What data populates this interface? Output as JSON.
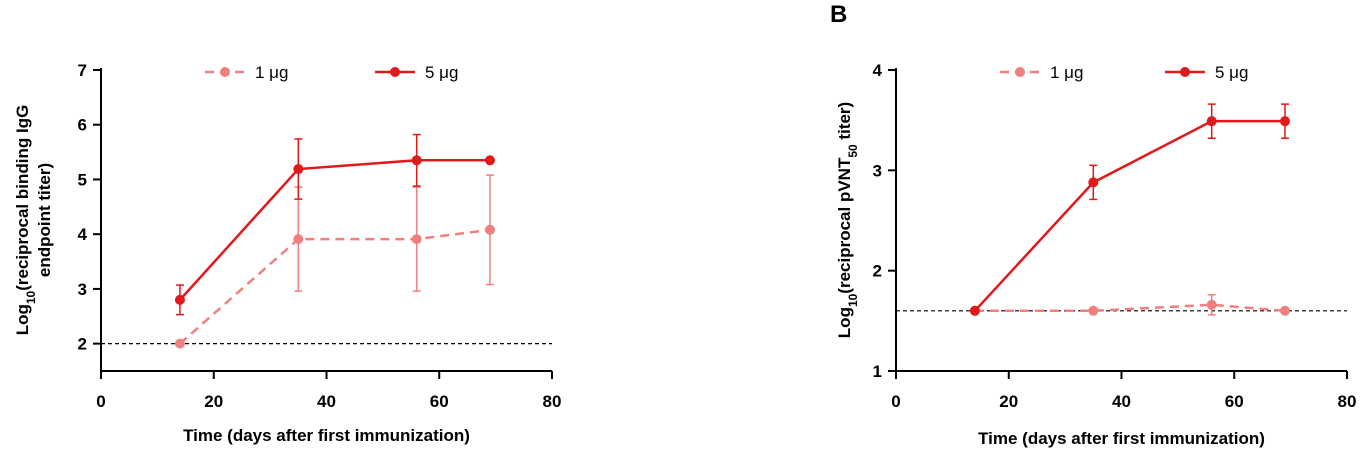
{
  "colors": {
    "dose_1ug": "#f08080",
    "dose_5ug": "#e0191b",
    "threshold": "#000000"
  },
  "chart_data": [
    {
      "type": "line",
      "panel": "",
      "title": "",
      "xlabel": "Time (days after first immunization)",
      "ylabel_line1": "Log",
      "ylabel_sub": "10",
      "ylabel_line1_rest": "(reciprocal binding IgG",
      "ylabel_line2": "endpoint titer)",
      "xlim": [
        0,
        80
      ],
      "ylim": [
        1.5,
        7
      ],
      "xticks": [
        0,
        20,
        40,
        60,
        80
      ],
      "yticks": [
        2,
        3,
        4,
        5,
        6,
        7
      ],
      "xtick_labels": [
        "0",
        "20",
        "40",
        "60",
        "80"
      ],
      "ytick_labels": [
        "2",
        "3",
        "4",
        "5",
        "6",
        "7"
      ],
      "threshold": 2,
      "legend_position": "top",
      "series": [
        {
          "name": "1 μg",
          "style": "dashed",
          "x": [
            14,
            35,
            56,
            69
          ],
          "y": [
            2.0,
            3.91,
            3.91,
            4.08
          ],
          "err_low": [
            0,
            0.95,
            0.95,
            1.0
          ],
          "err_high": [
            0,
            0.95,
            0.95,
            1.0
          ]
        },
        {
          "name": "5 μg",
          "style": "solid",
          "x": [
            14,
            35,
            56,
            69
          ],
          "y": [
            2.8,
            5.19,
            5.35,
            5.35
          ],
          "err_low": [
            0.27,
            0.55,
            0.47,
            0
          ],
          "err_high": [
            0.27,
            0.55,
            0.47,
            0
          ]
        }
      ]
    },
    {
      "type": "line",
      "panel": "B",
      "title": "",
      "xlabel": "Time (days after first immunization)",
      "ylabel_line1": "Log",
      "ylabel_sub": "10",
      "ylabel_line1_rest": "(reciprocal pVNT",
      "ylabel_sub2": "50",
      "ylabel_line1_end": " titer)",
      "xlim": [
        0,
        80
      ],
      "ylim": [
        1,
        4
      ],
      "xticks": [
        0,
        20,
        40,
        60,
        80
      ],
      "yticks": [
        1,
        2,
        3,
        4
      ],
      "xtick_labels": [
        "0",
        "20",
        "40",
        "60",
        "80"
      ],
      "ytick_labels": [
        "1",
        "2",
        "3",
        "4"
      ],
      "threshold": 1.6,
      "legend_position": "top",
      "series": [
        {
          "name": "1 μg",
          "style": "dashed",
          "x": [
            14,
            35,
            56,
            69
          ],
          "y": [
            1.6,
            1.6,
            1.66,
            1.6
          ],
          "err_low": [
            0,
            0,
            0.1,
            0
          ],
          "err_high": [
            0,
            0,
            0.1,
            0
          ]
        },
        {
          "name": "5 μg",
          "style": "solid",
          "x": [
            14,
            35,
            56,
            69
          ],
          "y": [
            1.6,
            2.88,
            3.49,
            3.49
          ],
          "err_low": [
            0,
            0.17,
            0.17,
            0.17
          ],
          "err_high": [
            0,
            0.17,
            0.17,
            0.17
          ]
        }
      ]
    }
  ]
}
